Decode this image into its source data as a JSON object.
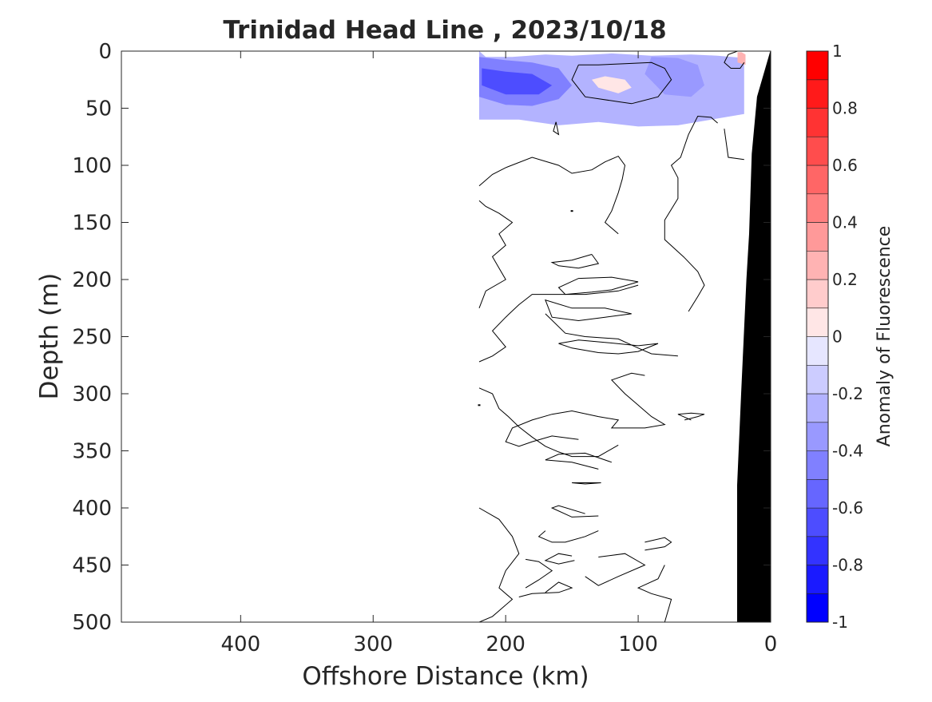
{
  "chart_data": {
    "type": "heatmap",
    "title": "Trinidad Head Line , 2023/10/18",
    "xlabel": "Offshore Distance (km)",
    "ylabel": "Depth (m)",
    "xlim": [
      490,
      0
    ],
    "ylim": [
      0,
      500
    ],
    "x_reversed": true,
    "y_reversed": true,
    "x_ticks": [
      400,
      300,
      200,
      100,
      0
    ],
    "y_ticks": [
      0,
      50,
      100,
      150,
      200,
      250,
      300,
      350,
      400,
      450,
      500
    ],
    "colorbar": {
      "label": "Anomaly of Fluorescence",
      "range": [
        -1,
        1
      ],
      "ticks": [
        1,
        0.8,
        0.6,
        0.4,
        0.2,
        0,
        -0.2,
        -0.4,
        -0.6,
        -0.8,
        -1
      ],
      "levels": [
        -1,
        -0.9,
        -0.8,
        -0.7,
        -0.6,
        -0.5,
        -0.4,
        -0.3,
        -0.2,
        -0.1,
        0.1,
        0.2,
        0.3,
        0.4,
        0.5,
        0.6,
        0.7,
        0.8,
        0.9,
        1
      ],
      "colors": [
        "#0000ff",
        "#1a1aff",
        "#3333ff",
        "#4d4dff",
        "#6666ff",
        "#8080ff",
        "#9999ff",
        "#b3b3ff",
        "#ccccff",
        "#e6e6ff",
        "#ffffff",
        "#ffffff",
        "#ffe6e6",
        "#ffcccc",
        "#ffb3b3",
        "#ff9999",
        "#ff8080",
        "#ff6666",
        "#ff4d4d",
        "#ff3333",
        "#ff1a1a",
        "#ff0000"
      ]
    },
    "data_extent_km": [
      0,
      220
    ],
    "filled_regions": [
      {
        "name": "negative-anomaly",
        "value": -0.3,
        "x": [
          220,
          215,
          195,
          170,
          150,
          120,
          90,
          60,
          40,
          20,
          20,
          45,
          70,
          100,
          130,
          160,
          190,
          220
        ],
        "y": [
          0,
          5,
          5,
          3,
          4,
          2,
          4,
          3,
          4,
          6,
          55,
          60,
          65,
          66,
          62,
          65,
          60,
          60
        ]
      },
      {
        "name": "negative-anomaly",
        "value": -0.5,
        "x": [
          220,
          200,
          180,
          160,
          150,
          160,
          180,
          200,
          220
        ],
        "y": [
          5,
          8,
          10,
          15,
          30,
          42,
          48,
          47,
          40
        ]
      },
      {
        "name": "negative-anomaly",
        "value": -0.7,
        "x": [
          218,
          200,
          180,
          165,
          175,
          200,
          218
        ],
        "y": [
          15,
          18,
          20,
          30,
          38,
          38,
          30
        ]
      },
      {
        "name": "negative-anomaly",
        "value": -0.4,
        "x": [
          90,
          70,
          55,
          50,
          60,
          80,
          95
        ],
        "y": [
          5,
          6,
          12,
          30,
          40,
          38,
          20
        ]
      },
      {
        "name": "negative-anomaly",
        "value": -0.3,
        "x": [
          40,
          30,
          25,
          30,
          40
        ],
        "y": [
          8,
          10,
          25,
          35,
          20
        ]
      },
      {
        "name": "positive-anomaly",
        "value": 0.2,
        "x": [
          135,
          125,
          110,
          105,
          115,
          130
        ],
        "y": [
          25,
          22,
          25,
          32,
          37,
          32
        ]
      },
      {
        "name": "positive-anomaly",
        "value": 0.4,
        "x": [
          25,
          22,
          19,
          19,
          25
        ],
        "y": [
          1,
          1,
          3,
          12,
          10
        ]
      }
    ],
    "zero_contours": [
      {
        "x": [
          145,
          150,
          140,
          105,
          85,
          75,
          80,
          90,
          110,
          130,
          145
        ],
        "y": [
          12,
          25,
          40,
          46,
          40,
          25,
          15,
          10,
          11,
          12,
          12
        ]
      },
      {
        "x": [
          25,
          32,
          35,
          30,
          23,
          20
        ],
        "y": [
          0,
          3,
          10,
          15,
          15,
          10
        ]
      },
      {
        "x": [
          162,
          164,
          160,
          162
        ],
        "y": [
          62,
          70,
          73,
          62
        ]
      },
      {
        "x": [
          220,
          210,
          200,
          180,
          160,
          150,
          135,
          125,
          115,
          110,
          112,
          115,
          120,
          125,
          115
        ],
        "y": [
          118,
          108,
          102,
          93,
          100,
          107,
          104,
          97,
          92,
          100,
          112,
          124,
          140,
          150,
          160
        ]
      },
      {
        "x": [
          220,
          215,
          205,
          195,
          205,
          200,
          210,
          205,
          200,
          215,
          220
        ],
        "y": [
          131,
          136,
          142,
          150,
          160,
          170,
          180,
          190,
          200,
          210,
          225
        ]
      },
      {
        "x": [
          40,
          45,
          55,
          62,
          68,
          75,
          70,
          70,
          80,
          80,
          65
        ],
        "y": [
          63,
          58,
          57,
          73,
          93,
          100,
          111,
          129,
          148,
          165,
          181
        ]
      },
      {
        "x": [
          35,
          32,
          20
        ],
        "y": [
          68,
          93,
          95
        ]
      },
      {
        "x": [
          65,
          55,
          50,
          55,
          62
        ],
        "y": [
          181,
          193,
          205,
          215,
          228
        ]
      },
      {
        "x": [
          135,
          150,
          165,
          160,
          145,
          130,
          135
        ],
        "y": [
          178,
          183,
          185,
          188,
          190,
          186,
          178
        ]
      },
      {
        "x": [
          100,
          120,
          145,
          160,
          155,
          135,
          120,
          100
        ],
        "y": [
          202,
          198,
          199,
          207,
          213,
          211,
          209,
          202
        ]
      },
      {
        "x": [
          105,
          125,
          150,
          170,
          165,
          145,
          125,
          105
        ],
        "y": [
          230,
          225,
          225,
          218,
          233,
          236,
          233,
          230
        ]
      },
      {
        "x": [
          170,
          155,
          140,
          115,
          100,
          90,
          70
        ],
        "y": [
          230,
          247,
          250,
          252,
          260,
          265,
          267
        ]
      },
      {
        "x": [
          220,
          210,
          200,
          210,
          200,
          190,
          180,
          160,
          140,
          115,
          100
        ],
        "y": [
          272,
          267,
          259,
          245,
          233,
          222,
          213,
          213,
          213,
          210,
          205
        ]
      },
      {
        "x": [
          85,
          100,
          125,
          145,
          160,
          150,
          130,
          115,
          100,
          85
        ],
        "y": [
          256,
          258,
          255,
          253,
          256,
          260,
          264,
          265,
          263,
          256
        ]
      },
      {
        "x": [
          220,
          210,
          205,
          198,
          190,
          180,
          170,
          160,
          150,
          130,
          115
        ],
        "y": [
          295,
          300,
          313,
          320,
          329,
          338,
          346,
          351,
          355,
          355,
          345
        ]
      },
      {
        "x": [
          95,
          105,
          120,
          110,
          100,
          90,
          80,
          95,
          110,
          120,
          115,
          130,
          150,
          165,
          180,
          195,
          200,
          190,
          180,
          165,
          145
        ],
        "y": [
          284,
          282,
          288,
          300,
          310,
          320,
          327,
          330,
          330,
          330,
          323,
          320,
          315,
          318,
          323,
          330,
          342,
          346,
          342,
          337,
          340
        ]
      },
      {
        "x": [
          65,
          55,
          50,
          60,
          70,
          60
        ],
        "y": [
          323,
          320,
          318,
          317,
          318,
          323
        ]
      },
      {
        "x": [
          130,
          150,
          170,
          160,
          140,
          120
        ],
        "y": [
          366,
          360,
          358,
          353,
          352,
          360
        ]
      },
      {
        "x": [
          140,
          150,
          128,
          140
        ],
        "y": [
          379,
          378,
          378,
          379
        ]
      },
      {
        "x": [
          140,
          160,
          165,
          150,
          130
        ],
        "y": [
          405,
          398,
          400,
          408,
          407
        ]
      },
      {
        "x": [
          130,
          140,
          155,
          165,
          175,
          170
        ],
        "y": [
          420,
          425,
          430,
          430,
          425,
          420
        ]
      },
      {
        "x": [
          170,
          160,
          150,
          160,
          180,
          190
        ],
        "y": [
          474,
          465,
          470,
          474,
          475,
          478
        ]
      },
      {
        "x": [
          150,
          160,
          170,
          160,
          148
        ],
        "y": [
          442,
          440,
          446,
          449,
          446
        ]
      },
      {
        "x": [
          130,
          110,
          95,
          115,
          130,
          140
        ],
        "y": [
          443,
          440,
          450,
          460,
          468,
          460
        ]
      },
      {
        "x": [
          95,
          80,
          75,
          80,
          95
        ],
        "y": [
          437,
          434,
          430,
          426,
          430
        ]
      },
      {
        "x": [
          220,
          205,
          195,
          190,
          200,
          205,
          195,
          205,
          210,
          220
        ],
        "y": [
          400,
          410,
          425,
          440,
          455,
          470,
          480,
          490,
          495,
          500
        ]
      },
      {
        "x": [
          185,
          175,
          165,
          175,
          185
        ],
        "y": [
          445,
          447,
          455,
          463,
          470
        ]
      },
      {
        "x": [
          80,
          75,
          90,
          100,
          85,
          80
        ],
        "y": [
          500,
          480,
          475,
          470,
          462,
          450
        ]
      }
    ],
    "zero_contour_dots": [
      {
        "x": 150,
        "y": 140
      },
      {
        "x": 220,
        "y": 310
      }
    ],
    "bathymetry": {
      "name": "seafloor",
      "x": [
        0,
        10,
        14,
        16,
        18,
        20,
        22,
        25,
        25,
        0
      ],
      "y": [
        0,
        40,
        90,
        160,
        200,
        250,
        300,
        380,
        500,
        500
      ]
    }
  }
}
